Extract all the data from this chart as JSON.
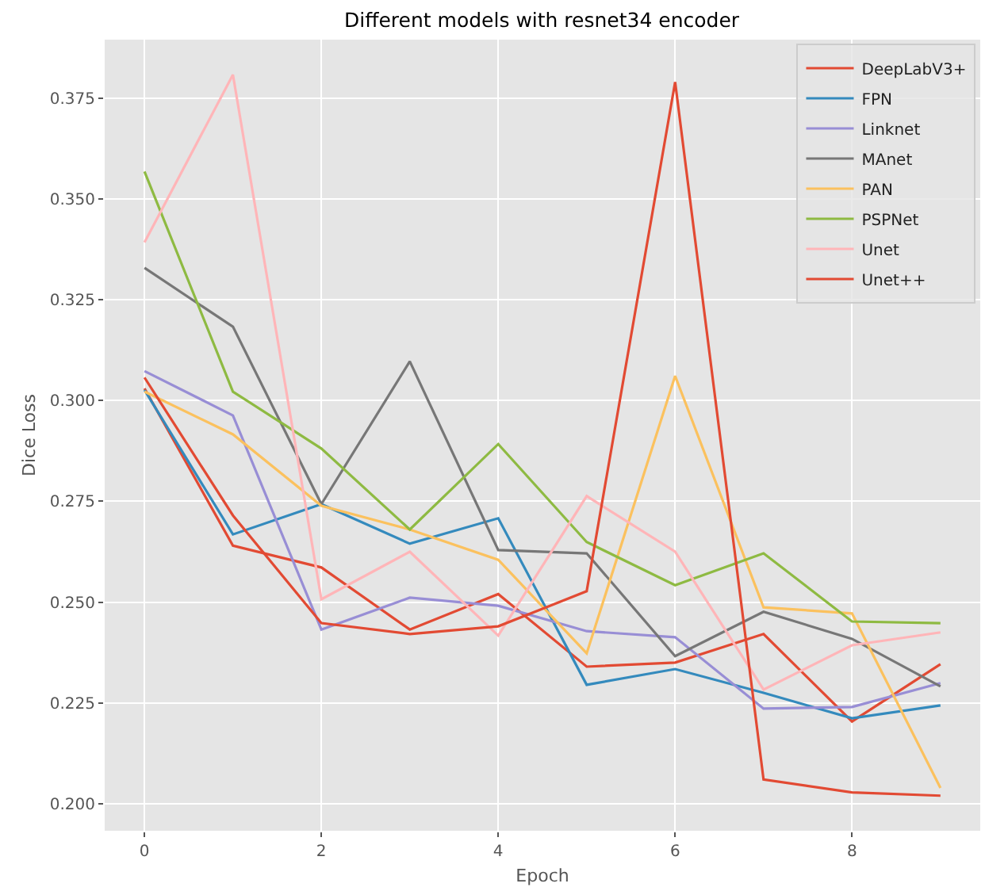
{
  "chart_data": {
    "type": "line",
    "title": "Different models with resnet34 encoder",
    "xlabel": "Epoch",
    "ylabel": "Dice Loss",
    "x": [
      0,
      1,
      2,
      3,
      4,
      5,
      6,
      7,
      8,
      9
    ],
    "series": [
      {
        "name": "DeepLabV3+",
        "color": "#e24a33",
        "values": [
          0.303,
          0.264,
          0.2586,
          0.2432,
          0.252,
          0.234,
          0.235,
          0.2421,
          0.2204,
          0.2346
        ]
      },
      {
        "name": "FPN",
        "color": "#348abd",
        "values": [
          0.3026,
          0.2668,
          0.2743,
          0.2645,
          0.2708,
          0.2295,
          0.2334,
          0.2275,
          0.2212,
          0.2244
        ]
      },
      {
        "name": "Linknet",
        "color": "#988ed5",
        "values": [
          0.3073,
          0.2963,
          0.2432,
          0.2511,
          0.2491,
          0.2428,
          0.2413,
          0.2236,
          0.224,
          0.2299
        ]
      },
      {
        "name": "MAnet",
        "color": "#777777",
        "values": [
          0.3329,
          0.3183,
          0.2743,
          0.3097,
          0.2629,
          0.2621,
          0.2366,
          0.2476,
          0.2409,
          0.2291
        ]
      },
      {
        "name": "PAN",
        "color": "#fbc15e",
        "values": [
          0.3022,
          0.2916,
          0.2739,
          0.268,
          0.2605,
          0.2373,
          0.3061,
          0.2487,
          0.2472,
          0.2039
        ]
      },
      {
        "name": "PSPNet",
        "color": "#8eba42",
        "values": [
          0.3568,
          0.3022,
          0.2881,
          0.268,
          0.2892,
          0.2649,
          0.2542,
          0.2621,
          0.2452,
          0.2448
        ]
      },
      {
        "name": "Unet",
        "color": "#ffb5b8",
        "values": [
          0.3392,
          0.3808,
          0.2507,
          0.2625,
          0.2417,
          0.2763,
          0.2625,
          0.2283,
          0.2393,
          0.2425
        ]
      },
      {
        "name": "Unet++",
        "color": "#e24a33",
        "values": [
          0.3057,
          0.2715,
          0.2448,
          0.2421,
          0.244,
          0.2527,
          0.379,
          0.206,
          0.2028,
          0.202
        ]
      }
    ],
    "xlim": [
      -0.45,
      9.45
    ],
    "xticks": [
      0,
      2,
      4,
      6,
      8
    ],
    "ylim": [
      0.1933,
      0.3895
    ],
    "yticks": [
      {
        "value": 0.2,
        "label": "0.200"
      },
      {
        "value": 0.225,
        "label": "0.225"
      },
      {
        "value": 0.25,
        "label": "0.250"
      },
      {
        "value": 0.275,
        "label": "0.275"
      },
      {
        "value": 0.3,
        "label": "0.300"
      },
      {
        "value": 0.325,
        "label": "0.325"
      },
      {
        "value": 0.35,
        "label": "0.350"
      },
      {
        "value": 0.375,
        "label": "0.375"
      }
    ],
    "grid": true,
    "legend": "top right",
    "marker": "none",
    "line_style": "solid"
  }
}
